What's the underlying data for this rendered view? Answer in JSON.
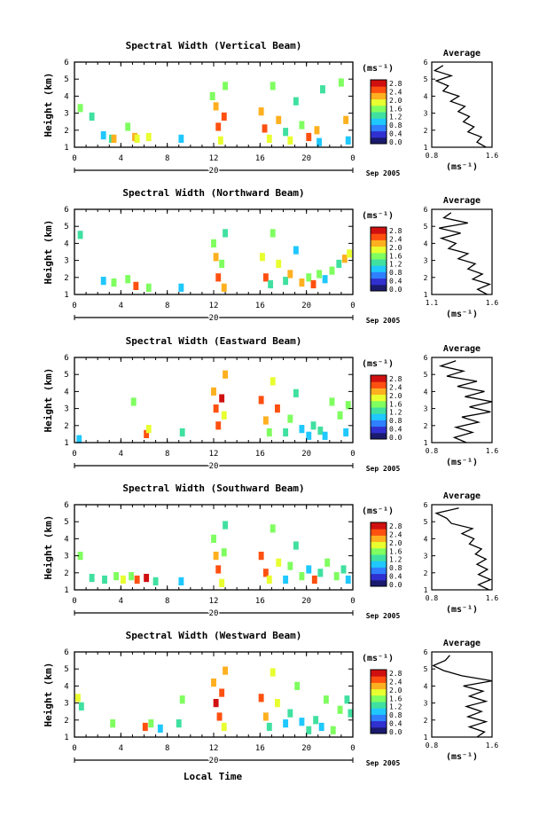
{
  "figure": {
    "xlabel": "Local Time",
    "date_label": "Sep 2005",
    "day_label": "20",
    "colorbar_unit": "(ms⁻¹)",
    "colorbar_ticks": [
      "0.0",
      "0.4",
      "0.8",
      "1.2",
      "1.6",
      "2.0",
      "2.4",
      "2.8"
    ],
    "colorbar_colors": [
      "#1a1a6e",
      "#3030d0",
      "#2f7fff",
      "#1fc8ff",
      "#40e0a0",
      "#7fff60",
      "#e8ff30",
      "#ffb020",
      "#ff5010",
      "#d01010"
    ]
  },
  "chart_data": [
    {
      "type": "heatmap",
      "title": "Spectral Width (Vertical Beam)",
      "ylabel": "Height (km)",
      "xlim": [
        0,
        24
      ],
      "ylim": [
        1,
        6
      ],
      "xticks": [
        "0",
        "4",
        "8",
        "12",
        "16",
        "20",
        "0"
      ],
      "yticks": [
        "1",
        "2",
        "3",
        "4",
        "5",
        "6"
      ],
      "cells": [
        [
          0.5,
          3.3,
          1.6
        ],
        [
          1.5,
          2.8,
          1.2
        ],
        [
          2.5,
          1.7,
          0.9
        ],
        [
          3.2,
          1.5,
          1.3
        ],
        [
          3.4,
          1.5,
          2.2
        ],
        [
          4.6,
          2.2,
          1.4
        ],
        [
          5.2,
          1.6,
          2.3
        ],
        [
          5.4,
          1.5,
          1.8
        ],
        [
          6.4,
          1.6,
          1.9
        ],
        [
          9.2,
          1.5,
          0.8
        ],
        [
          11.9,
          4.0,
          1.4
        ],
        [
          12.2,
          3.4,
          2.2
        ],
        [
          12.4,
          2.2,
          2.6
        ],
        [
          12.6,
          1.4,
          1.8
        ],
        [
          12.9,
          2.8,
          2.4
        ],
        [
          13.0,
          4.6,
          1.6
        ],
        [
          16.1,
          3.1,
          2.3
        ],
        [
          16.4,
          2.1,
          2.4
        ],
        [
          16.8,
          1.5,
          1.9
        ],
        [
          17.1,
          4.6,
          1.6
        ],
        [
          17.6,
          2.6,
          2.1
        ],
        [
          18.2,
          1.9,
          1.1
        ],
        [
          18.6,
          1.4,
          2.0
        ],
        [
          19.1,
          3.7,
          1.2
        ],
        [
          19.6,
          2.3,
          1.7
        ],
        [
          20.2,
          1.6,
          2.6
        ],
        [
          20.9,
          2.0,
          2.2
        ],
        [
          21.1,
          1.3,
          0.9
        ],
        [
          21.4,
          4.4,
          1.3
        ],
        [
          23.0,
          4.8,
          1.5
        ],
        [
          23.4,
          2.6,
          2.1
        ],
        [
          23.6,
          1.4,
          1.0
        ]
      ],
      "avg": {
        "xlim": [
          0.8,
          1.6
        ],
        "xticks": [
          "0.8",
          "1.6"
        ],
        "profile": [
          [
            1.52,
            1.0
          ],
          [
            1.4,
            1.3
          ],
          [
            1.46,
            1.6
          ],
          [
            1.28,
            1.9
          ],
          [
            1.36,
            2.2
          ],
          [
            1.22,
            2.5
          ],
          [
            1.3,
            2.8
          ],
          [
            1.15,
            3.1
          ],
          [
            1.24,
            3.4
          ],
          [
            1.05,
            3.7
          ],
          [
            1.16,
            4.0
          ],
          [
            0.95,
            4.3
          ],
          [
            1.02,
            4.6
          ],
          [
            0.86,
            4.9
          ],
          [
            1.06,
            5.2
          ],
          [
            0.84,
            5.5
          ],
          [
            0.95,
            5.8
          ]
        ]
      }
    },
    {
      "type": "heatmap",
      "title": "Spectral Width (Northward Beam)",
      "ylabel": "Height (km)",
      "xlim": [
        0,
        24
      ],
      "ylim": [
        1,
        6
      ],
      "xticks": [
        "0",
        "4",
        "8",
        "12",
        "16",
        "20",
        "0"
      ],
      "yticks": [
        "1",
        "2",
        "3",
        "4",
        "5",
        "6"
      ],
      "cells": [
        [
          0.5,
          4.5,
          1.3
        ],
        [
          2.5,
          1.8,
          1.0
        ],
        [
          3.4,
          1.7,
          1.4
        ],
        [
          4.6,
          1.9,
          1.7
        ],
        [
          5.3,
          1.5,
          2.6
        ],
        [
          6.4,
          1.4,
          1.6
        ],
        [
          9.2,
          1.4,
          0.9
        ],
        [
          12.0,
          4.0,
          1.6
        ],
        [
          12.2,
          3.2,
          2.3
        ],
        [
          12.4,
          2.0,
          2.6
        ],
        [
          12.7,
          2.8,
          1.5
        ],
        [
          12.9,
          1.4,
          2.2
        ],
        [
          13.0,
          4.6,
          1.2
        ],
        [
          16.2,
          3.2,
          2.0
        ],
        [
          16.5,
          2.0,
          2.6
        ],
        [
          16.9,
          1.6,
          1.2
        ],
        [
          17.1,
          4.6,
          1.4
        ],
        [
          17.6,
          2.8,
          1.8
        ],
        [
          18.2,
          1.8,
          1.3
        ],
        [
          18.6,
          2.2,
          2.3
        ],
        [
          19.1,
          3.6,
          1.0
        ],
        [
          19.6,
          1.7,
          2.1
        ],
        [
          20.2,
          2.0,
          1.4
        ],
        [
          20.6,
          1.6,
          2.6
        ],
        [
          21.1,
          2.2,
          1.7
        ],
        [
          21.6,
          1.9,
          0.9
        ],
        [
          22.2,
          2.4,
          1.5
        ],
        [
          22.8,
          2.8,
          1.3
        ],
        [
          23.3,
          3.1,
          2.2
        ],
        [
          23.7,
          3.4,
          1.8
        ]
      ],
      "avg": {
        "xlim": [
          1.1,
          1.6
        ],
        "xticks": [
          "1.1",
          "1.6"
        ],
        "profile": [
          [
            1.56,
            1.0
          ],
          [
            1.48,
            1.3
          ],
          [
            1.58,
            1.6
          ],
          [
            1.44,
            1.9
          ],
          [
            1.52,
            2.2
          ],
          [
            1.4,
            2.5
          ],
          [
            1.46,
            2.8
          ],
          [
            1.32,
            3.1
          ],
          [
            1.4,
            3.4
          ],
          [
            1.24,
            3.7
          ],
          [
            1.3,
            4.0
          ],
          [
            1.18,
            4.3
          ],
          [
            1.34,
            4.6
          ],
          [
            1.16,
            4.9
          ],
          [
            1.4,
            5.2
          ],
          [
            1.2,
            5.5
          ],
          [
            1.26,
            5.8
          ]
        ]
      }
    },
    {
      "type": "heatmap",
      "title": "Spectral Width (Eastward Beam)",
      "ylabel": "Height (km)",
      "xlim": [
        0,
        24
      ],
      "ylim": [
        1,
        6
      ],
      "xticks": [
        "0",
        "4",
        "8",
        "12",
        "16",
        "20",
        "0"
      ],
      "yticks": [
        "1",
        "2",
        "3",
        "4",
        "5",
        "6"
      ],
      "cells": [
        [
          0.4,
          1.2,
          1.0
        ],
        [
          5.1,
          3.4,
          1.4
        ],
        [
          6.2,
          1.5,
          2.6
        ],
        [
          6.4,
          1.8,
          1.9
        ],
        [
          9.3,
          1.6,
          1.2
        ],
        [
          12.0,
          4.0,
          2.2
        ],
        [
          12.2,
          3.0,
          2.6
        ],
        [
          12.4,
          2.0,
          2.4
        ],
        [
          12.7,
          3.6,
          2.7
        ],
        [
          12.9,
          2.6,
          1.9
        ],
        [
          13.0,
          5.0,
          2.3
        ],
        [
          16.1,
          3.5,
          2.6
        ],
        [
          16.5,
          2.3,
          2.2
        ],
        [
          16.8,
          1.6,
          1.4
        ],
        [
          17.1,
          4.6,
          1.8
        ],
        [
          17.5,
          3.0,
          2.4
        ],
        [
          18.2,
          1.6,
          1.3
        ],
        [
          18.6,
          2.4,
          1.6
        ],
        [
          19.1,
          3.9,
          1.1
        ],
        [
          19.6,
          1.8,
          0.9
        ],
        [
          20.2,
          1.4,
          0.8
        ],
        [
          20.6,
          2.0,
          1.2
        ],
        [
          21.2,
          1.7,
          1.3
        ],
        [
          21.6,
          1.4,
          1.0
        ],
        [
          22.2,
          3.4,
          1.5
        ],
        [
          22.9,
          2.6,
          1.4
        ],
        [
          23.4,
          1.6,
          0.9
        ],
        [
          23.6,
          3.2,
          1.7
        ]
      ],
      "avg": {
        "xlim": [
          0.8,
          1.6
        ],
        "xticks": [
          "0.8",
          "1.6"
        ],
        "profile": [
          [
            1.26,
            1.0
          ],
          [
            1.1,
            1.3
          ],
          [
            1.34,
            1.6
          ],
          [
            1.12,
            1.9
          ],
          [
            1.42,
            2.2
          ],
          [
            1.2,
            2.5
          ],
          [
            1.58,
            2.8
          ],
          [
            1.3,
            3.1
          ],
          [
            1.62,
            3.4
          ],
          [
            1.24,
            3.7
          ],
          [
            1.5,
            4.0
          ],
          [
            1.14,
            4.3
          ],
          [
            1.4,
            4.6
          ],
          [
            1.0,
            4.9
          ],
          [
            1.22,
            5.2
          ],
          [
            0.92,
            5.5
          ],
          [
            1.12,
            5.8
          ]
        ]
      }
    },
    {
      "type": "heatmap",
      "title": "Spectral Width (Southward Beam)",
      "ylabel": "Height (km)",
      "xlim": [
        0,
        24
      ],
      "ylim": [
        1,
        6
      ],
      "xticks": [
        "0",
        "4",
        "8",
        "12",
        "16",
        "20",
        "0"
      ],
      "yticks": [
        "1",
        "2",
        "3",
        "4",
        "5",
        "6"
      ],
      "cells": [
        [
          0.5,
          3.0,
          1.6
        ],
        [
          1.5,
          1.7,
          1.3
        ],
        [
          2.6,
          1.6,
          1.1
        ],
        [
          3.6,
          1.8,
          1.5
        ],
        [
          4.2,
          1.6,
          1.9
        ],
        [
          4.9,
          1.8,
          1.7
        ],
        [
          5.4,
          1.6,
          2.5
        ],
        [
          6.2,
          1.7,
          2.7
        ],
        [
          7.0,
          1.5,
          1.2
        ],
        [
          9.2,
          1.5,
          1.0
        ],
        [
          12.0,
          4.0,
          1.5
        ],
        [
          12.2,
          3.0,
          2.2
        ],
        [
          12.4,
          2.2,
          2.6
        ],
        [
          12.7,
          1.4,
          1.9
        ],
        [
          12.9,
          3.2,
          1.6
        ],
        [
          13.0,
          4.8,
          1.3
        ],
        [
          16.1,
          3.0,
          2.5
        ],
        [
          16.5,
          2.0,
          2.4
        ],
        [
          16.8,
          1.6,
          1.8
        ],
        [
          17.1,
          4.6,
          1.4
        ],
        [
          17.6,
          2.6,
          2.0
        ],
        [
          18.2,
          1.6,
          1.0
        ],
        [
          18.6,
          2.4,
          1.4
        ],
        [
          19.1,
          3.6,
          1.2
        ],
        [
          19.6,
          1.8,
          1.5
        ],
        [
          20.2,
          2.2,
          1.0
        ],
        [
          20.7,
          1.6,
          2.4
        ],
        [
          21.2,
          2.0,
          1.3
        ],
        [
          21.8,
          2.6,
          1.7
        ],
        [
          22.6,
          1.8,
          1.4
        ],
        [
          23.2,
          2.2,
          1.2
        ],
        [
          23.6,
          1.6,
          0.9
        ]
      ],
      "avg": {
        "xlim": [
          0.8,
          1.6
        ],
        "xticks": [
          "0.8",
          "1.6"
        ],
        "profile": [
          [
            1.56,
            1.0
          ],
          [
            1.42,
            1.3
          ],
          [
            1.58,
            1.6
          ],
          [
            1.42,
            1.9
          ],
          [
            1.54,
            2.2
          ],
          [
            1.4,
            2.5
          ],
          [
            1.52,
            2.8
          ],
          [
            1.38,
            3.1
          ],
          [
            1.46,
            3.4
          ],
          [
            1.3,
            3.7
          ],
          [
            1.36,
            4.0
          ],
          [
            1.2,
            4.3
          ],
          [
            1.34,
            4.6
          ],
          [
            1.06,
            4.9
          ],
          [
            1.0,
            5.2
          ],
          [
            0.86,
            5.5
          ],
          [
            1.16,
            5.8
          ]
        ]
      }
    },
    {
      "type": "heatmap",
      "title": "Spectral Width (Westward Beam)",
      "ylabel": "Height (km)",
      "xlim": [
        0,
        24
      ],
      "ylim": [
        1,
        6
      ],
      "xticks": [
        "0",
        "4",
        "8",
        "12",
        "16",
        "20",
        "0"
      ],
      "yticks": [
        "1",
        "2",
        "3",
        "4",
        "5",
        "6"
      ],
      "cells": [
        [
          0.3,
          3.3,
          1.8
        ],
        [
          0.6,
          2.8,
          1.3
        ],
        [
          3.3,
          1.8,
          1.4
        ],
        [
          6.1,
          1.6,
          2.6
        ],
        [
          6.6,
          1.8,
          1.6
        ],
        [
          7.4,
          1.5,
          1.0
        ],
        [
          9.0,
          1.8,
          1.2
        ],
        [
          9.3,
          3.2,
          1.5
        ],
        [
          12.0,
          4.2,
          2.3
        ],
        [
          12.2,
          3.0,
          2.7
        ],
        [
          12.5,
          2.2,
          2.4
        ],
        [
          12.7,
          3.6,
          2.6
        ],
        [
          12.9,
          1.6,
          2.0
        ],
        [
          13.0,
          4.9,
          2.2
        ],
        [
          16.1,
          3.3,
          2.6
        ],
        [
          16.5,
          2.2,
          2.2
        ],
        [
          16.8,
          1.6,
          1.2
        ],
        [
          17.1,
          4.8,
          1.8
        ],
        [
          17.5,
          3.0,
          2.0
        ],
        [
          18.2,
          1.8,
          1.0
        ],
        [
          18.6,
          2.4,
          1.3
        ],
        [
          19.2,
          4.0,
          1.4
        ],
        [
          19.6,
          1.9,
          0.9
        ],
        [
          20.2,
          1.4,
          1.1
        ],
        [
          20.8,
          2.0,
          1.3
        ],
        [
          21.3,
          1.6,
          1.0
        ],
        [
          21.7,
          3.2,
          1.6
        ],
        [
          22.3,
          1.4,
          1.4
        ],
        [
          22.9,
          2.6,
          1.5
        ],
        [
          23.5,
          3.2,
          1.3
        ],
        [
          23.8,
          2.4,
          1.1
        ]
      ],
      "avg": {
        "xlim": [
          0.8,
          1.6
        ],
        "xticks": [
          "0.8",
          "1.6"
        ],
        "profile": [
          [
            1.4,
            1.0
          ],
          [
            1.5,
            1.3
          ],
          [
            1.3,
            1.6
          ],
          [
            1.52,
            1.9
          ],
          [
            1.28,
            2.2
          ],
          [
            1.46,
            2.5
          ],
          [
            1.26,
            2.8
          ],
          [
            1.52,
            3.1
          ],
          [
            1.3,
            3.4
          ],
          [
            1.48,
            3.7
          ],
          [
            1.22,
            4.0
          ],
          [
            1.6,
            4.3
          ],
          [
            1.2,
            4.6
          ],
          [
            0.96,
            4.9
          ],
          [
            0.82,
            5.2
          ],
          [
            0.98,
            5.5
          ],
          [
            1.04,
            5.8
          ]
        ]
      }
    }
  ]
}
